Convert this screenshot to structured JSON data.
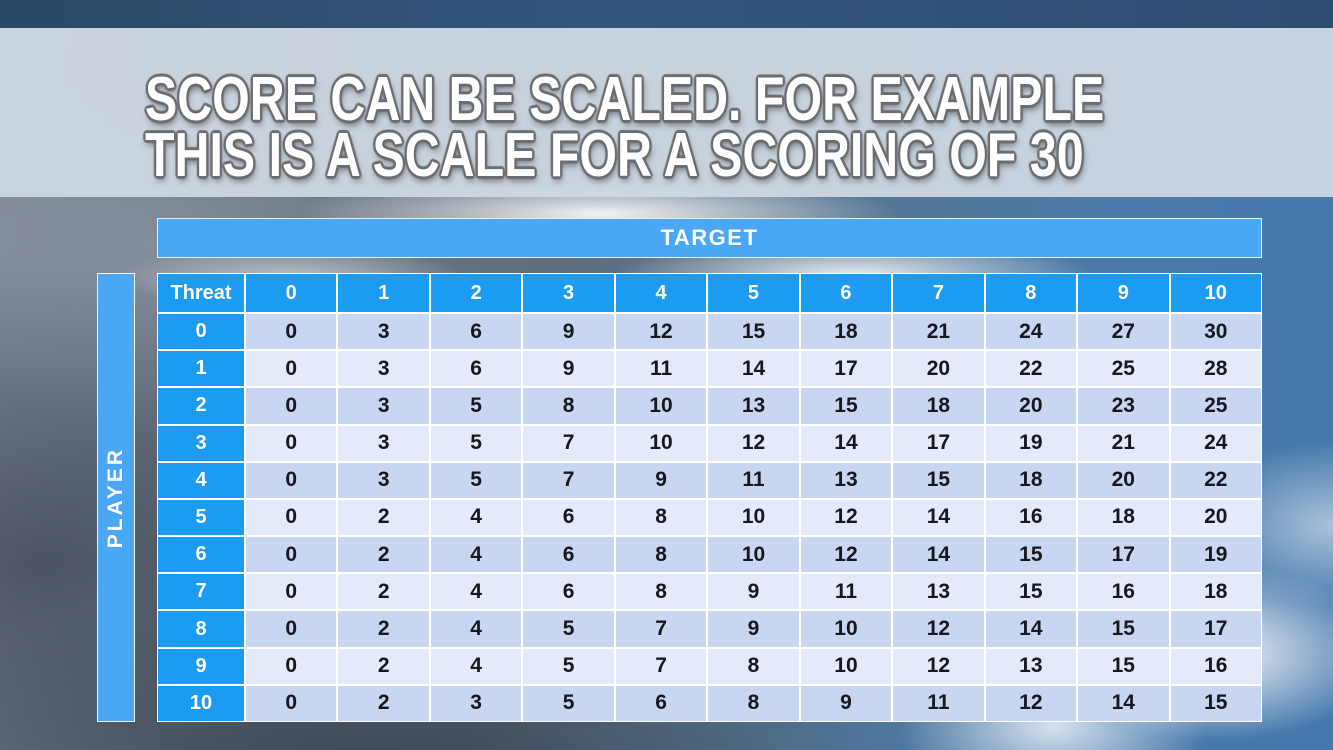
{
  "title": {
    "line1": "SCORE CAN BE SCALED. FOR EXAMPLE",
    "line2": "THIS IS A SCALE FOR A SCORING OF 30"
  },
  "table": {
    "target_label": "TARGET",
    "player_label": "PLAYER",
    "corner_label": "Threat",
    "column_headers": [
      "0",
      "1",
      "2",
      "3",
      "4",
      "5",
      "6",
      "7",
      "8",
      "9",
      "10"
    ],
    "row_headers": [
      "0",
      "1",
      "2",
      "3",
      "4",
      "5",
      "6",
      "7",
      "8",
      "9",
      "10"
    ],
    "values": [
      [
        0,
        3,
        6,
        9,
        12,
        15,
        18,
        21,
        24,
        27,
        30
      ],
      [
        0,
        3,
        6,
        9,
        11,
        14,
        17,
        20,
        22,
        25,
        28
      ],
      [
        0,
        3,
        5,
        8,
        10,
        13,
        15,
        18,
        20,
        23,
        25
      ],
      [
        0,
        3,
        5,
        7,
        10,
        12,
        14,
        17,
        19,
        21,
        24
      ],
      [
        0,
        3,
        5,
        7,
        9,
        11,
        13,
        15,
        18,
        20,
        22
      ],
      [
        0,
        2,
        4,
        6,
        8,
        10,
        12,
        14,
        16,
        18,
        20
      ],
      [
        0,
        2,
        4,
        6,
        8,
        10,
        12,
        14,
        15,
        17,
        19
      ],
      [
        0,
        2,
        4,
        6,
        8,
        9,
        11,
        13,
        15,
        16,
        18
      ],
      [
        0,
        2,
        4,
        5,
        7,
        9,
        10,
        12,
        14,
        15,
        17
      ],
      [
        0,
        2,
        4,
        5,
        7,
        8,
        10,
        12,
        13,
        15,
        16
      ],
      [
        0,
        2,
        3,
        5,
        6,
        8,
        9,
        11,
        12,
        14,
        15
      ]
    ]
  },
  "colors": {
    "header_blue": "#1b9bf1",
    "bar_blue": "#49a7f6",
    "row_band_dark": "#c8d6f2",
    "row_band_light": "#e4eafa",
    "cell_text": "#17171f",
    "top_bar": "#2d4c70",
    "title_band": "#d0d9e3",
    "title_text": "#ffffff"
  }
}
